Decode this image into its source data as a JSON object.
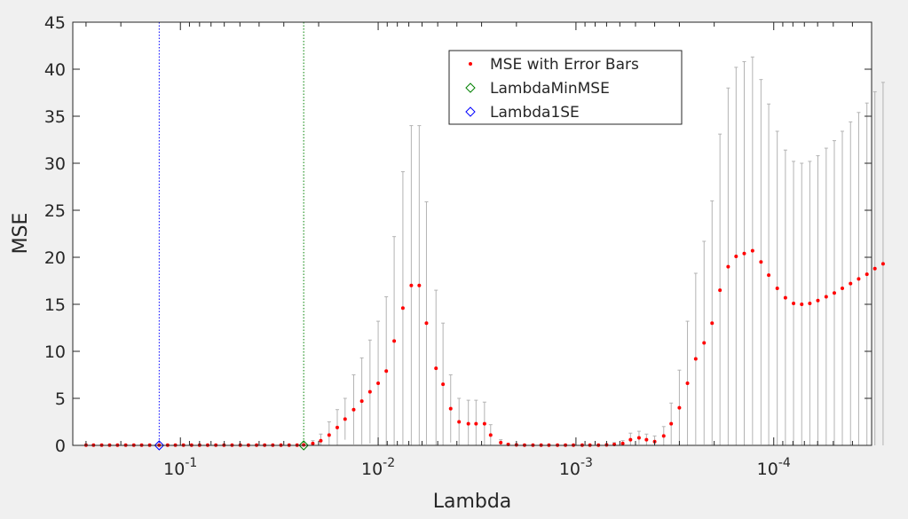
{
  "chart_data": {
    "type": "scatter",
    "title": "",
    "xlabel": "Lambda",
    "ylabel": "MSE",
    "x_scale": "log",
    "x_direction": "reversed",
    "xlim": [
      0.35,
      3.2e-05
    ],
    "ylim": [
      0,
      45
    ],
    "yticks": [
      0,
      5,
      10,
      15,
      20,
      25,
      30,
      35,
      40,
      45
    ],
    "xticks": [
      {
        "value": 0.1,
        "base": "10",
        "exp": "-1"
      },
      {
        "value": 0.01,
        "base": "10",
        "exp": "-2"
      },
      {
        "value": 0.001,
        "base": "10",
        "exp": "-3"
      },
      {
        "value": 0.0001,
        "base": "10",
        "exp": "-4"
      }
    ],
    "grid": false,
    "legend_position": "top-center",
    "lambda_min_mse": 0.0238,
    "lambda_1se": 0.128,
    "series": [
      {
        "name": "MSE with Error Bars",
        "marker": "dot",
        "color": "#ff0000",
        "errorbar_color": "#b3b3b3",
        "points": [
          {
            "x": 0.3,
            "y": 0.02,
            "up": 0.02
          },
          {
            "x": 0.275,
            "y": 0.02,
            "up": 0.02
          },
          {
            "x": 0.25,
            "y": 0.02,
            "up": 0.02
          },
          {
            "x": 0.228,
            "y": 0.02,
            "up": 0.02
          },
          {
            "x": 0.208,
            "y": 0.02,
            "up": 0.02
          },
          {
            "x": 0.189,
            "y": 0.02,
            "up": 0.02
          },
          {
            "x": 0.172,
            "y": 0.02,
            "up": 0.02
          },
          {
            "x": 0.157,
            "y": 0.02,
            "up": 0.02
          },
          {
            "x": 0.143,
            "y": 0.02,
            "up": 0.02
          },
          {
            "x": 0.128,
            "y": 0.02,
            "up": 0.02
          },
          {
            "x": 0.116,
            "y": 0.02,
            "up": 0.02
          },
          {
            "x": 0.106,
            "y": 0.02,
            "up": 0.02
          },
          {
            "x": 0.0965,
            "y": 0.02,
            "up": 0.02
          },
          {
            "x": 0.0878,
            "y": 0.02,
            "up": 0.02
          },
          {
            "x": 0.08,
            "y": 0.02,
            "up": 0.02
          },
          {
            "x": 0.0728,
            "y": 0.02,
            "up": 0.02
          },
          {
            "x": 0.0662,
            "y": 0.02,
            "up": 0.02
          },
          {
            "x": 0.0602,
            "y": 0.02,
            "up": 0.02
          },
          {
            "x": 0.0548,
            "y": 0.02,
            "up": 0.02
          },
          {
            "x": 0.0498,
            "y": 0.02,
            "up": 0.02
          },
          {
            "x": 0.0453,
            "y": 0.02,
            "up": 0.02
          },
          {
            "x": 0.0412,
            "y": 0.02,
            "up": 0.02
          },
          {
            "x": 0.0375,
            "y": 0.02,
            "up": 0.02
          },
          {
            "x": 0.0341,
            "y": 0.02,
            "up": 0.02
          },
          {
            "x": 0.031,
            "y": 0.02,
            "up": 0.02
          },
          {
            "x": 0.0282,
            "y": 0.02,
            "up": 0.02
          },
          {
            "x": 0.0257,
            "y": 0.02,
            "up": 0.02
          },
          {
            "x": 0.0238,
            "y": 0.05,
            "up": 0.05
          },
          {
            "x": 0.0214,
            "y": 0.2,
            "up": 0.5
          },
          {
            "x": 0.0195,
            "y": 0.5,
            "up": 1.2
          },
          {
            "x": 0.0177,
            "y": 1.1,
            "up": 2.5
          },
          {
            "x": 0.0161,
            "y": 1.9,
            "up": 3.8
          },
          {
            "x": 0.0147,
            "y": 2.8,
            "up": 5.0
          },
          {
            "x": 0.0133,
            "y": 3.8,
            "up": 7.5
          },
          {
            "x": 0.0121,
            "y": 4.7,
            "up": 9.3
          },
          {
            "x": 0.011,
            "y": 5.7,
            "up": 11.2
          },
          {
            "x": 0.01,
            "y": 6.6,
            "up": 13.2
          },
          {
            "x": 0.0091,
            "y": 7.9,
            "up": 15.8
          },
          {
            "x": 0.0083,
            "y": 11.1,
            "up": 22.2
          },
          {
            "x": 0.0075,
            "y": 14.6,
            "up": 29.1
          },
          {
            "x": 0.0068,
            "y": 17.0,
            "up": 34.0
          },
          {
            "x": 0.0062,
            "y": 17.0,
            "up": 34.0
          },
          {
            "x": 0.0057,
            "y": 13.0,
            "up": 25.9
          },
          {
            "x": 0.0051,
            "y": 8.2,
            "up": 16.5
          },
          {
            "x": 0.0047,
            "y": 6.5,
            "up": 13.0
          },
          {
            "x": 0.0043,
            "y": 3.9,
            "up": 7.5
          },
          {
            "x": 0.0039,
            "y": 2.5,
            "up": 5.0
          },
          {
            "x": 0.0035,
            "y": 2.3,
            "up": 4.8
          },
          {
            "x": 0.0032,
            "y": 2.3,
            "up": 4.8
          },
          {
            "x": 0.0029,
            "y": 2.3,
            "up": 4.6
          },
          {
            "x": 0.0027,
            "y": 1.1,
            "up": 2.2
          },
          {
            "x": 0.0024,
            "y": 0.3,
            "up": 0.6
          },
          {
            "x": 0.0022,
            "y": 0.1,
            "up": 0.2
          },
          {
            "x": 0.002,
            "y": 0.05,
            "up": 0.1
          },
          {
            "x": 0.00182,
            "y": 0.02,
            "up": 0.05
          },
          {
            "x": 0.00165,
            "y": 0.02,
            "up": 0.05
          },
          {
            "x": 0.0015,
            "y": 0.02,
            "up": 0.05
          },
          {
            "x": 0.00137,
            "y": 0.02,
            "up": 0.05
          },
          {
            "x": 0.00124,
            "y": 0.02,
            "up": 0.05
          },
          {
            "x": 0.00113,
            "y": 0.02,
            "up": 0.05
          },
          {
            "x": 0.00103,
            "y": 0.02,
            "up": 0.05
          },
          {
            "x": 0.00093,
            "y": 0.02,
            "up": 0.05
          },
          {
            "x": 0.00085,
            "y": 0.02,
            "up": 0.05
          },
          {
            "x": 0.00077,
            "y": 0.02,
            "up": 0.05
          },
          {
            "x": 0.0007,
            "y": 0.05,
            "up": 0.1
          },
          {
            "x": 0.00064,
            "y": 0.1,
            "up": 0.3
          },
          {
            "x": 0.00058,
            "y": 0.2,
            "up": 0.5
          },
          {
            "x": 0.00053,
            "y": 0.6,
            "up": 1.3
          },
          {
            "x": 0.00048,
            "y": 0.8,
            "up": 1.5
          },
          {
            "x": 0.00044,
            "y": 0.6,
            "up": 1.2
          },
          {
            "x": 0.0004,
            "y": 0.4,
            "up": 1.0
          },
          {
            "x": 0.00036,
            "y": 1.0,
            "up": 2.0
          },
          {
            "x": 0.00033,
            "y": 2.3,
            "up": 4.5
          },
          {
            "x": 0.0003,
            "y": 4.0,
            "up": 8.0
          },
          {
            "x": 0.000273,
            "y": 6.6,
            "up": 13.2
          },
          {
            "x": 0.000248,
            "y": 9.2,
            "up": 18.3
          },
          {
            "x": 0.000225,
            "y": 10.9,
            "up": 21.7
          },
          {
            "x": 0.000205,
            "y": 13.0,
            "up": 26.0
          },
          {
            "x": 0.000187,
            "y": 16.5,
            "up": 33.1
          },
          {
            "x": 0.00017,
            "y": 19.0,
            "up": 38.0
          },
          {
            "x": 0.000155,
            "y": 20.1,
            "up": 40.2
          },
          {
            "x": 0.000141,
            "y": 20.4,
            "up": 40.8
          },
          {
            "x": 0.000128,
            "y": 20.7,
            "up": 41.3
          },
          {
            "x": 0.000116,
            "y": 19.5,
            "up": 38.9
          },
          {
            "x": 0.000106,
            "y": 18.1,
            "up": 36.3
          },
          {
            "x": 9.6e-05,
            "y": 16.7,
            "up": 33.4
          },
          {
            "x": 8.73e-05,
            "y": 15.7,
            "up": 31.4
          },
          {
            "x": 7.94e-05,
            "y": 15.1,
            "up": 30.2
          },
          {
            "x": 7.22e-05,
            "y": 15.0,
            "up": 30.0
          },
          {
            "x": 6.57e-05,
            "y": 15.1,
            "up": 30.2
          },
          {
            "x": 5.98e-05,
            "y": 15.4,
            "up": 30.8
          },
          {
            "x": 5.43e-05,
            "y": 15.8,
            "up": 31.6
          },
          {
            "x": 4.94e-05,
            "y": 16.2,
            "up": 32.4
          },
          {
            "x": 4.5e-05,
            "y": 16.7,
            "up": 33.4
          },
          {
            "x": 4.09e-05,
            "y": 17.2,
            "up": 34.4
          },
          {
            "x": 3.72e-05,
            "y": 17.7,
            "up": 35.4
          },
          {
            "x": 3.38e-05,
            "y": 18.2,
            "up": 36.4
          },
          {
            "x": 3.08e-05,
            "y": 18.8,
            "up": 37.6
          },
          {
            "x": 2.8e-05,
            "y": 19.3,
            "up": 38.6
          }
        ]
      },
      {
        "name": "LambdaMinMSE",
        "marker": "diamond-open",
        "color": "#008000",
        "x": 0.0238,
        "y": 0
      },
      {
        "name": "Lambda1SE",
        "marker": "diamond-open",
        "color": "#0000ff",
        "x": 0.128,
        "y": 0
      }
    ],
    "legend": [
      "MSE with Error Bars",
      "LambdaMinMSE",
      "Lambda1SE"
    ]
  }
}
